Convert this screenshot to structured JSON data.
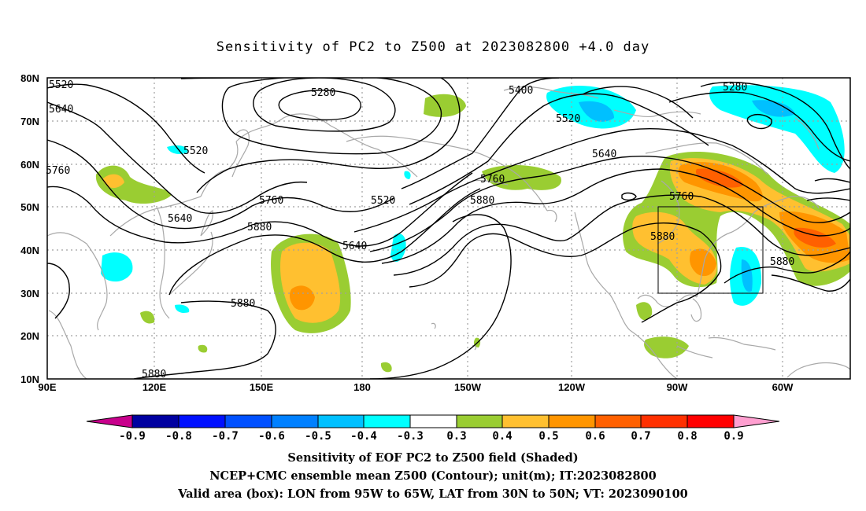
{
  "title": "Sensitivity of PC2 to Z500 at 2023082800 +4.0 day",
  "map": {
    "lat_labels": [
      "80N",
      "70N",
      "60N",
      "50N",
      "40N",
      "30N",
      "20N",
      "10N"
    ],
    "lon_labels": [
      "90E",
      "120E",
      "150E",
      "180",
      "150W",
      "120W",
      "90W",
      "60W"
    ],
    "contour_labels": [
      "5520",
      "5640",
      "5760",
      "5280",
      "5520",
      "5400",
      "5520",
      "5280",
      "5640",
      "5760",
      "5520",
      "5880",
      "5760",
      "5640",
      "5880",
      "5640",
      "5880",
      "5880",
      "5880",
      "5880"
    ],
    "valid_box": {
      "lon": "95W to 65W",
      "lat": "30N to 50N"
    }
  },
  "colorbar": {
    "labels": [
      "-0.9",
      "-0.8",
      "-0.7",
      "-0.6",
      "-0.5",
      "-0.4",
      "-0.3",
      "0.3",
      "0.4",
      "0.5",
      "0.6",
      "0.7",
      "0.8",
      "0.9"
    ],
    "colors": [
      "#c8008c",
      "#0000a0",
      "#0010ff",
      "#0050ff",
      "#0080ff",
      "#00c0ff",
      "#00ffff",
      "#ffffff",
      "#9acd32",
      "#ffc030",
      "#ff9500",
      "#ff6000",
      "#ff3000",
      "#ff0000",
      "#ff9fd0"
    ]
  },
  "captions": {
    "line1": "Sensitivity of EOF PC2 to Z500 field (Shaded)",
    "line2": "NCEP+CMC ensemble mean Z500 (Contour); unit(m); IT:2023082800",
    "line3": "Valid area (box): LON from 95W to 65W, LAT from 30N to 50N; VT: 2023090100"
  }
}
